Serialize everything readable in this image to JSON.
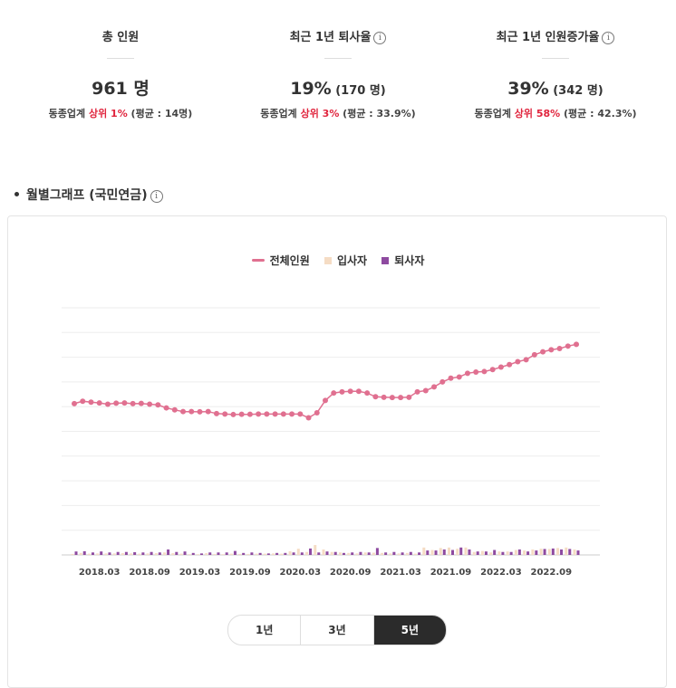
{
  "stats": {
    "total": {
      "label": "총 인원",
      "value": "961 명",
      "cmp_prefix": "동종업계 ",
      "cmp_rank": "상위 1%",
      "cmp_suffix": " (평균 : 14명)"
    },
    "turnover": {
      "label": "최근 1년 퇴사율",
      "value": "19%",
      "value_sub": " (170 명)",
      "cmp_prefix": "동종업계 ",
      "cmp_rank": "상위 3%",
      "cmp_suffix": " (평균 : 33.9%)"
    },
    "growth": {
      "label": "최근 1년 인원증가율",
      "value": "39%",
      "value_sub": " (342 명)",
      "cmp_prefix": "동종업계 ",
      "cmp_rank": "상위 58%",
      "cmp_suffix": " (평균 : 42.3%)"
    }
  },
  "section": {
    "title": "월별그래프 (국민연금)"
  },
  "legend": {
    "total": "전체인원",
    "hires": "입사자",
    "leavers": "퇴사자"
  },
  "periods": [
    "1년",
    "3년",
    "5년"
  ],
  "active_period": "5년",
  "colors": {
    "total": "#e07090",
    "hires": "#f5dcc4",
    "leavers": "#8e4aa0",
    "rank": "#e0243d"
  },
  "chart_data": {
    "type": "line",
    "x_tick_labels": [
      "2018.03",
      "2018.09",
      "2019.03",
      "2019.09",
      "2020.03",
      "2020.09",
      "2021.03",
      "2021.09",
      "2022.03",
      "2022.09"
    ],
    "grid": true,
    "series": [
      {
        "name": "전체인원",
        "type": "line",
        "values": [
          612,
          622,
          618,
          615,
          610,
          614,
          615,
          612,
          613,
          610,
          607,
          595,
          587,
          580,
          580,
          579,
          580,
          572,
          570,
          568,
          569,
          569,
          570,
          570,
          570,
          570,
          570,
          570,
          555,
          575,
          625,
          655,
          660,
          662,
          662,
          655,
          640,
          638,
          637,
          637,
          638,
          660,
          665,
          680,
          700,
          715,
          720,
          735,
          740,
          742,
          750,
          760,
          770,
          782,
          790,
          810,
          822,
          830,
          835,
          845,
          852
        ]
      },
      {
        "name": "입사자",
        "type": "bar",
        "values": [
          4,
          8,
          5,
          6,
          6,
          6,
          7,
          6,
          5,
          6,
          7,
          10,
          7,
          5,
          3,
          3,
          7,
          4,
          3,
          5,
          4,
          4,
          5,
          5,
          6,
          5,
          15,
          25,
          12,
          40,
          22,
          12,
          10,
          8,
          6,
          10,
          9,
          8,
          6,
          6,
          8,
          5,
          30,
          20,
          28,
          30,
          25,
          30,
          12,
          16,
          10,
          14,
          14,
          20,
          18,
          22,
          25,
          24,
          28,
          30,
          22
        ]
      },
      {
        "name": "퇴사자",
        "type": "bar",
        "values": [
          14,
          15,
          10,
          14,
          10,
          12,
          12,
          11,
          10,
          12,
          10,
          22,
          12,
          14,
          8,
          6,
          10,
          10,
          10,
          16,
          8,
          10,
          8,
          6,
          8,
          8,
          10,
          10,
          26,
          10,
          14,
          12,
          8,
          10,
          12,
          10,
          28,
          10,
          12,
          10,
          12,
          10,
          18,
          18,
          22,
          20,
          30,
          22,
          14,
          14,
          20,
          12,
          12,
          22,
          14,
          18,
          24,
          26,
          22,
          24,
          18
        ]
      }
    ]
  }
}
